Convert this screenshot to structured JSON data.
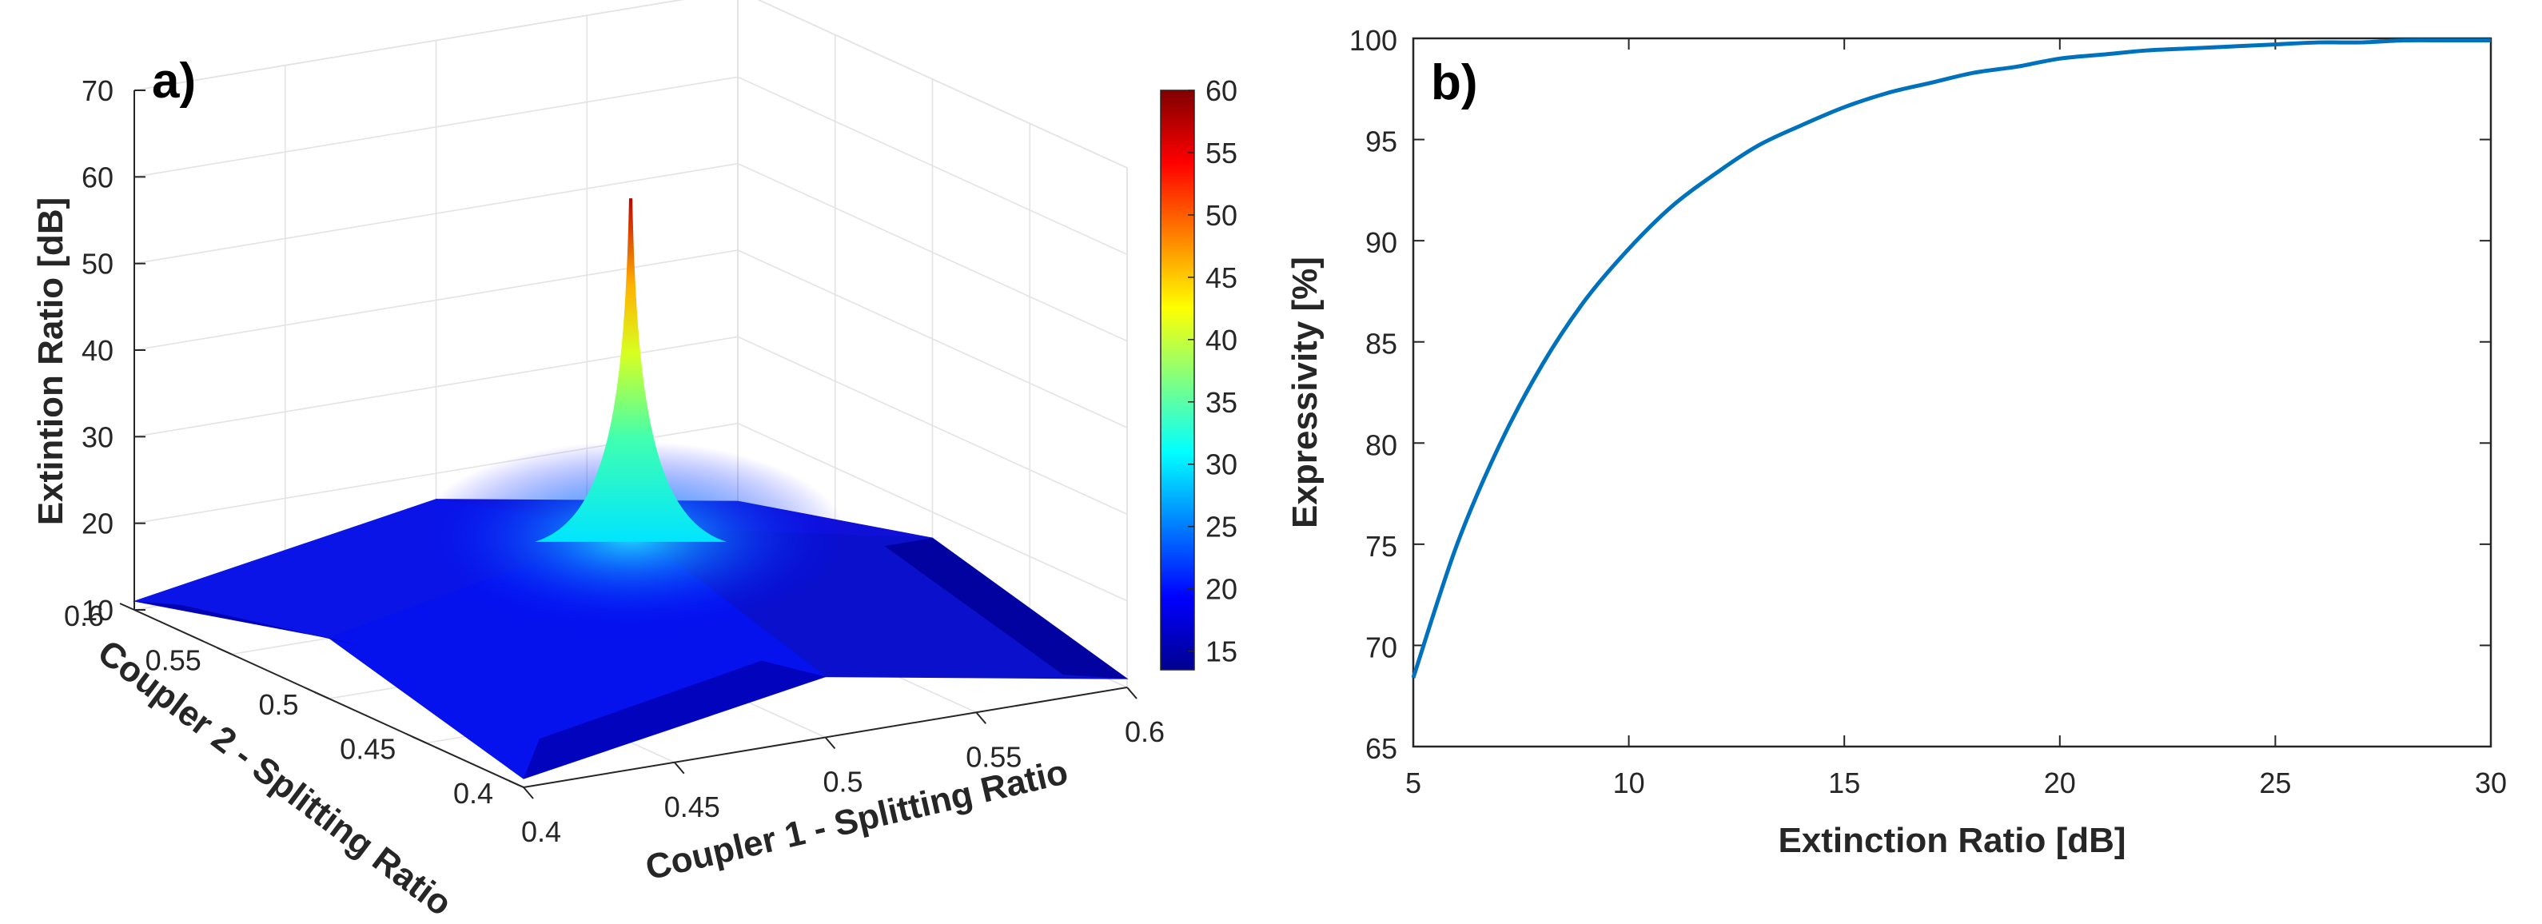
{
  "chart_data": [
    {
      "panel": "a)",
      "type": "surface3d",
      "title": "",
      "xlabel": "Coupler 1 - Splitting Ratio",
      "ylabel": "Coupler 2 - Splitting Ratio",
      "zlabel": "Extintion Ratio [dB]",
      "xlim": [
        0.4,
        0.6
      ],
      "ylim": [
        0.4,
        0.6
      ],
      "zlim": [
        10,
        70
      ],
      "xticks": [
        "0.4",
        "0.45",
        "0.5",
        "0.55",
        "0.6"
      ],
      "yticks": [
        "0.4",
        "0.45",
        "0.5",
        "0.55",
        "0.6"
      ],
      "zticks": [
        "10",
        "20",
        "30",
        "40",
        "50",
        "60",
        "70"
      ],
      "peak": {
        "x": 0.5,
        "y": 0.5,
        "z": 62
      },
      "corner_values": {
        "x0.4_y0.4": 11,
        "x0.4_y0.6": 11,
        "x0.6_y0.4": 11,
        "x0.6_y0.6": 11
      },
      "edge_midpoint_values": {
        "x0.5_y0.4": 17,
        "x0.5_y0.6": 17,
        "x0.4_y0.5": 17,
        "x0.6_y0.5": 17
      },
      "colorbar": {
        "min": 15,
        "max": 60,
        "ticks": [
          "15",
          "20",
          "25",
          "30",
          "35",
          "40",
          "45",
          "50",
          "55",
          "60"
        ],
        "colormap": "jet"
      },
      "grid": true
    },
    {
      "panel": "b)",
      "type": "line",
      "title": "",
      "xlabel": "Extinction Ratio [dB]",
      "ylabel": "Expressivity [%]",
      "xlim": [
        5,
        30
      ],
      "ylim": [
        65,
        100
      ],
      "xticks": [
        "5",
        "10",
        "15",
        "20",
        "25",
        "30"
      ],
      "yticks": [
        "65",
        "70",
        "75",
        "80",
        "85",
        "90",
        "95",
        "100"
      ],
      "grid": false,
      "series": [
        {
          "name": "Expressivity",
          "color": "#0072BD",
          "x": [
            5,
            6,
            7,
            8,
            9,
            10,
            11,
            12,
            13,
            14,
            15,
            16,
            17,
            18,
            19,
            20,
            21,
            22,
            23,
            24,
            25,
            26,
            27,
            28,
            29,
            30
          ],
          "y": [
            68.4,
            74.9,
            79.9,
            83.9,
            87.1,
            89.6,
            91.7,
            93.3,
            94.7,
            95.7,
            96.6,
            97.3,
            97.8,
            98.3,
            98.6,
            99.0,
            99.2,
            99.4,
            99.5,
            99.6,
            99.7,
            99.8,
            99.8,
            99.9,
            99.9,
            99.9
          ]
        }
      ]
    }
  ]
}
